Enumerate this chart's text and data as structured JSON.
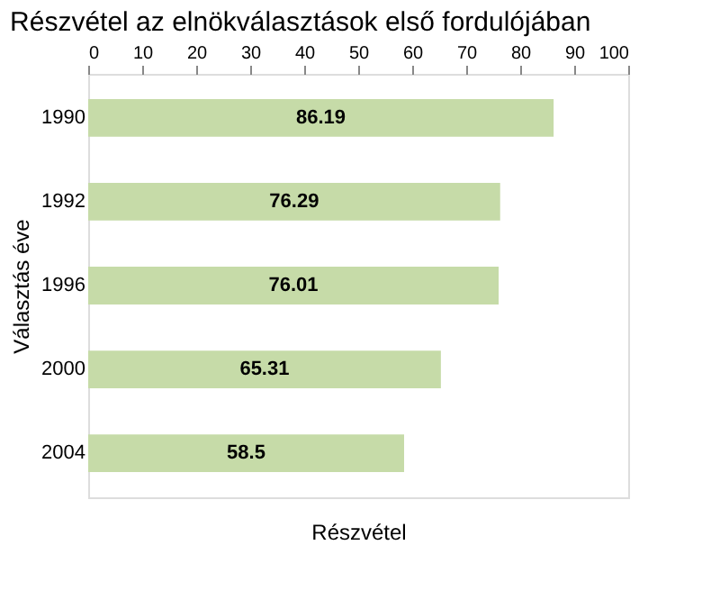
{
  "chart_data": {
    "type": "bar",
    "orientation": "horizontal",
    "title": "Részvétel az elnökválasztások első fordulójában",
    "xlabel": "Részvétel",
    "ylabel": "Választás éve",
    "categories": [
      "1990",
      "1992",
      "1996",
      "2000",
      "2004"
    ],
    "values": [
      86.19,
      76.29,
      76.01,
      65.31,
      58.5
    ],
    "color": "#c6dba8",
    "xlim": [
      0,
      100
    ],
    "xticks": [
      0,
      10,
      20,
      30,
      40,
      50,
      60,
      70,
      80,
      90,
      100
    ],
    "data_labels": true,
    "grid": false
  }
}
